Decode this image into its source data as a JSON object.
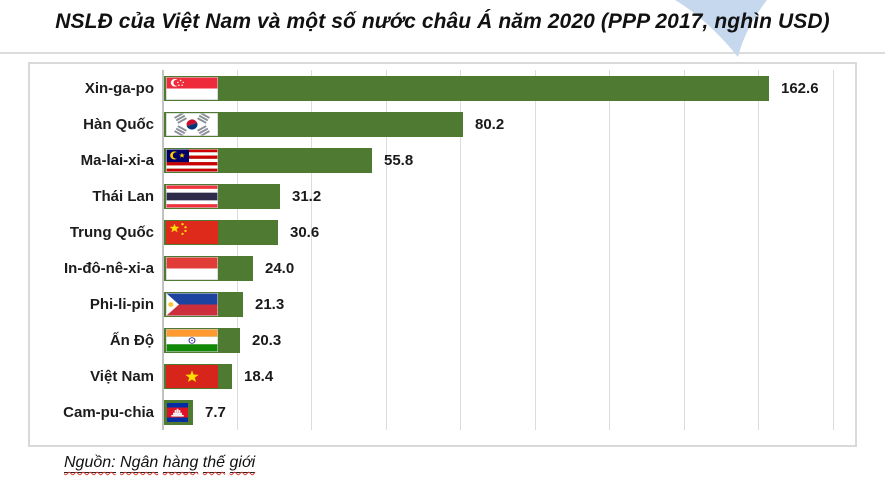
{
  "title": "NSLĐ của Việt Nam và một số nước châu Á năm 2020 (PPP 2017, nghìn USD)",
  "source_text": "Nguồn: Ngân hàng thế giới",
  "chart_data": {
    "type": "bar",
    "orientation": "horizontal",
    "title": "NSLĐ của Việt Nam và một số nước châu Á năm 2020 (PPP 2017, nghìn USD)",
    "categories": [
      "Xin-ga-po",
      "Hàn Quốc",
      "Ma-lai-xi-a",
      "Thái Lan",
      "Trung Quốc",
      "In-đô-nê-xi-a",
      "Phi-li-pin",
      "Ấn Độ",
      "Việt Nam",
      "Cam-pu-chia"
    ],
    "values": [
      162.6,
      80.2,
      55.8,
      31.2,
      30.6,
      24.0,
      21.3,
      20.3,
      18.4,
      7.7
    ],
    "value_labels": [
      "162.6",
      "80.2",
      "55.8",
      "31.2",
      "30.6",
      "24.0",
      "21.3",
      "20.3",
      "18.4",
      "7.7"
    ],
    "flags": [
      "singapore",
      "south-korea",
      "malaysia",
      "thailand",
      "china",
      "indonesia",
      "philippines",
      "india",
      "vietnam",
      "cambodia"
    ],
    "xlabel": "",
    "ylabel": "",
    "xlim": [
      0,
      180
    ],
    "grid_interval": 20,
    "gridlines": "vertical, unlabeled",
    "legend": "none",
    "source": "Nguồn: Ngân hàng thế giới"
  },
  "colors": {
    "bar": "#4e7b31",
    "gridline": "#dcdcdc",
    "axis_line": "#c2c2c2",
    "frame_border": "#d9d9d9",
    "divider": "#dcdcdc",
    "watermark": "#c5d8ee",
    "squiggle": "#e0362c",
    "text": "#1a1a1a"
  }
}
